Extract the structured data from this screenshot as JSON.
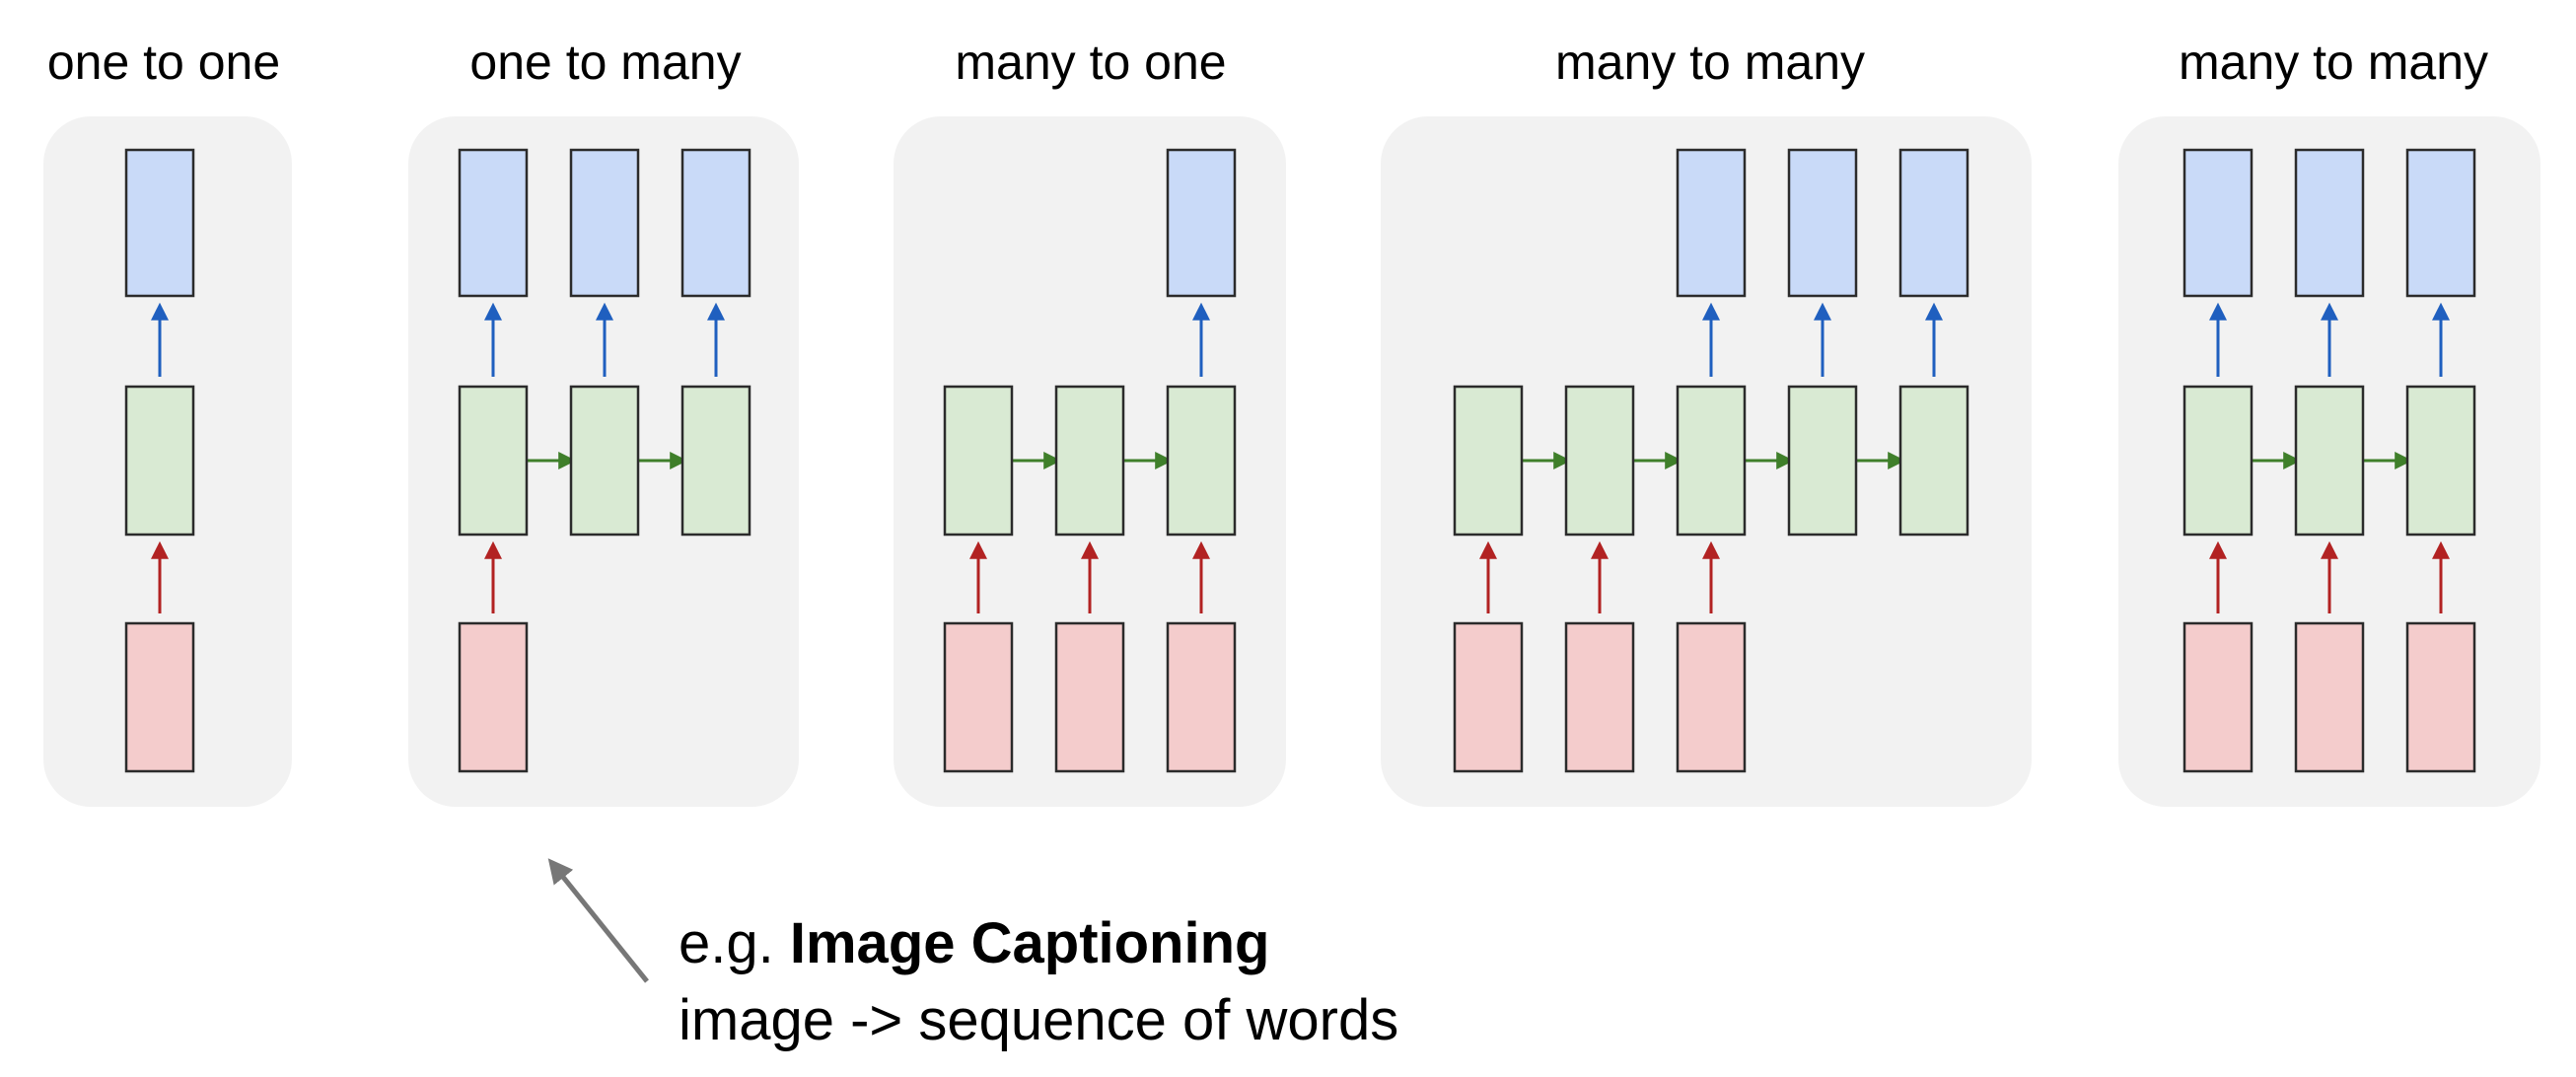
{
  "colors": {
    "panel_background": "#f2f2f2",
    "output_fill": "#c9daf8",
    "hidden_fill": "#d9ead3",
    "input_fill": "#f4cccc",
    "output_arrow": "#1f5fbf",
    "recurrent_arrow": "#3f7f2a",
    "input_arrow": "#b22222",
    "pointer_arrow": "#777777"
  },
  "panels": [
    {
      "title": "one to one",
      "inputs": [
        0
      ],
      "hidden": [
        0
      ],
      "outputs": [
        0
      ]
    },
    {
      "title": "one to many",
      "inputs": [
        0
      ],
      "hidden": [
        0,
        1,
        2
      ],
      "outputs": [
        0,
        1,
        2
      ]
    },
    {
      "title": "many to one",
      "inputs": [
        0,
        1,
        2
      ],
      "hidden": [
        0,
        1,
        2
      ],
      "outputs": [
        2
      ]
    },
    {
      "title": "many to many",
      "inputs": [
        0,
        1,
        2
      ],
      "hidden": [
        0,
        1,
        2,
        3,
        4
      ],
      "outputs": [
        2,
        3,
        4
      ]
    },
    {
      "title": "many to many",
      "inputs": [
        0,
        1,
        2
      ],
      "hidden": [
        0,
        1,
        2
      ],
      "outputs": [
        0,
        1,
        2
      ]
    }
  ],
  "annotation": {
    "prefix": "e.g.",
    "title": "Image Captioning",
    "description": "image -> sequence of words",
    "points_to_panel": "one to many"
  }
}
